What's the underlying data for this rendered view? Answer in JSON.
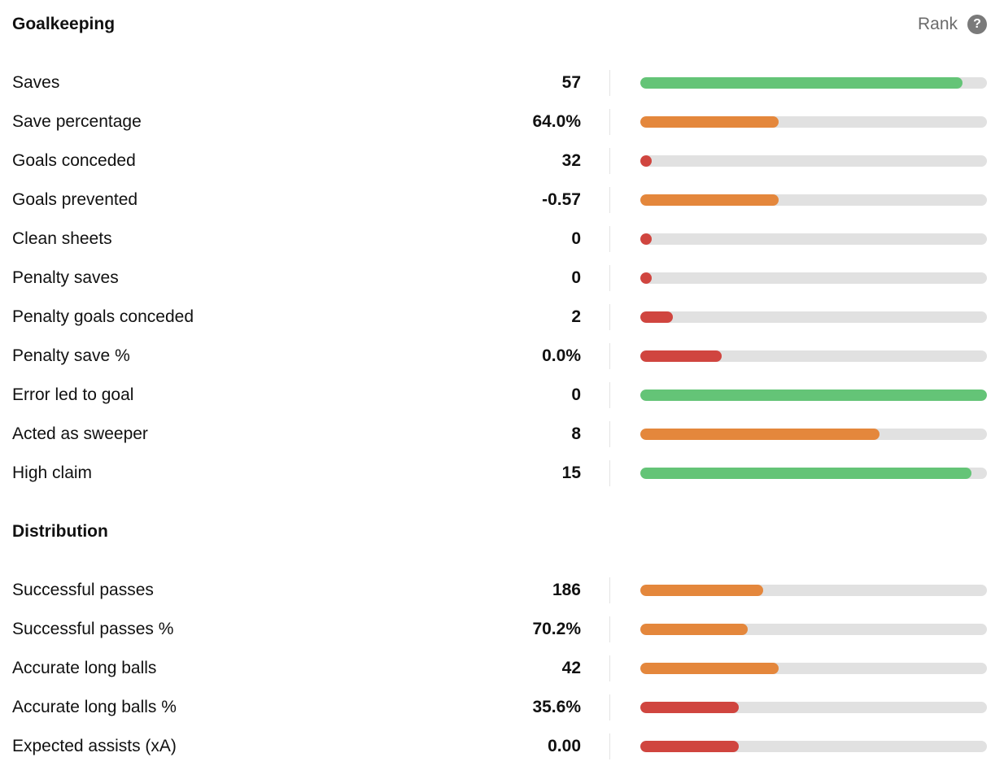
{
  "colors": {
    "green": "#64c477",
    "orange": "#e4873c",
    "red": "#d0453f",
    "track": "#e1e1e1"
  },
  "header": {
    "title": "Goalkeeping",
    "rank_label": "Rank",
    "help_icon": "?"
  },
  "goalkeeping": [
    {
      "label": "Saves",
      "value": "57",
      "rank_fill": 0.93,
      "color": "green"
    },
    {
      "label": "Save percentage",
      "value": "64.0%",
      "rank_fill": 0.4,
      "color": "orange"
    },
    {
      "label": "Goals conceded",
      "value": "32",
      "rank_fill": 0.0,
      "color": "red"
    },
    {
      "label": "Goals prevented",
      "value": "-0.57",
      "rank_fill": 0.4,
      "color": "orange"
    },
    {
      "label": "Clean sheets",
      "value": "0",
      "rank_fill": 0.0,
      "color": "red"
    },
    {
      "label": "Penalty saves",
      "value": "0",
      "rank_fill": 0.0,
      "color": "red"
    },
    {
      "label": "Penalty goals conceded",
      "value": "2",
      "rank_fill": 0.095,
      "color": "red"
    },
    {
      "label": "Penalty save %",
      "value": "0.0%",
      "rank_fill": 0.235,
      "color": "red"
    },
    {
      "label": "Error led to goal",
      "value": "0",
      "rank_fill": 1.0,
      "color": "green"
    },
    {
      "label": "Acted as sweeper",
      "value": "8",
      "rank_fill": 0.69,
      "color": "orange"
    },
    {
      "label": "High claim",
      "value": "15",
      "rank_fill": 0.955,
      "color": "green"
    }
  ],
  "distribution_title": "Distribution",
  "distribution": [
    {
      "label": "Successful passes",
      "value": "186",
      "rank_fill": 0.355,
      "color": "orange"
    },
    {
      "label": "Successful passes %",
      "value": "70.2%",
      "rank_fill": 0.31,
      "color": "orange"
    },
    {
      "label": "Accurate long balls",
      "value": "42",
      "rank_fill": 0.4,
      "color": "orange"
    },
    {
      "label": "Accurate long balls %",
      "value": "35.6%",
      "rank_fill": 0.285,
      "color": "red"
    },
    {
      "label": "Expected assists (xA)",
      "value": "0.00",
      "rank_fill": 0.285,
      "color": "red"
    }
  ]
}
